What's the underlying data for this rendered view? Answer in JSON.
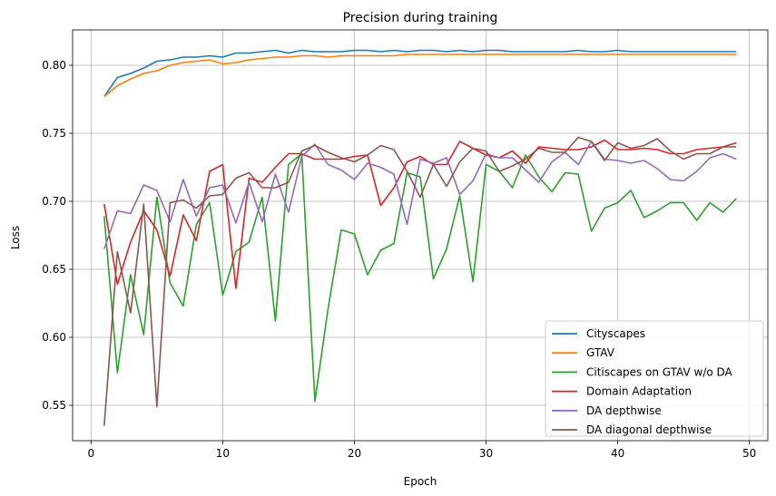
{
  "chart_data": {
    "type": "line",
    "title": "Precision during training",
    "xlabel": "Epoch",
    "ylabel": "Loss",
    "xlim": [
      -1.4,
      51.4
    ],
    "ylim": [
      0.524,
      0.826
    ],
    "xticks": [
      0,
      10,
      20,
      30,
      40,
      50
    ],
    "yticks": [
      0.55,
      0.6,
      0.65,
      0.7,
      0.75,
      0.8
    ],
    "ytick_labels": [
      "0.55",
      "0.60",
      "0.65",
      "0.70",
      "0.75",
      "0.80"
    ],
    "grid": true,
    "legend_position": "lower-right",
    "x": [
      1,
      2,
      3,
      4,
      5,
      6,
      7,
      8,
      9,
      10,
      11,
      12,
      13,
      14,
      15,
      16,
      17,
      18,
      19,
      20,
      21,
      22,
      23,
      24,
      25,
      26,
      27,
      28,
      29,
      30,
      31,
      32,
      33,
      34,
      35,
      36,
      37,
      38,
      39,
      40,
      41,
      42,
      43,
      44,
      45,
      46,
      47,
      48,
      49
    ],
    "series": [
      {
        "name": "Cityscapes",
        "color": "#1f77b4",
        "values": [
          0.777,
          0.791,
          0.794,
          0.798,
          0.803,
          0.804,
          0.806,
          0.806,
          0.807,
          0.806,
          0.809,
          0.809,
          0.81,
          0.811,
          0.809,
          0.811,
          0.81,
          0.81,
          0.81,
          0.811,
          0.811,
          0.81,
          0.811,
          0.81,
          0.811,
          0.811,
          0.81,
          0.811,
          0.81,
          0.811,
          0.811,
          0.81,
          0.81,
          0.81,
          0.81,
          0.81,
          0.811,
          0.81,
          0.81,
          0.811,
          0.81,
          0.81,
          0.81,
          0.81,
          0.81,
          0.81,
          0.81,
          0.81,
          0.81
        ]
      },
      {
        "name": "GTAV",
        "color": "#ff7f0e",
        "values": [
          0.777,
          0.785,
          0.79,
          0.794,
          0.796,
          0.8,
          0.802,
          0.803,
          0.804,
          0.801,
          0.802,
          0.804,
          0.805,
          0.806,
          0.806,
          0.807,
          0.807,
          0.806,
          0.807,
          0.807,
          0.807,
          0.807,
          0.807,
          0.808,
          0.808,
          0.808,
          0.808,
          0.808,
          0.808,
          0.808,
          0.808,
          0.808,
          0.808,
          0.808,
          0.808,
          0.808,
          0.808,
          0.808,
          0.808,
          0.808,
          0.808,
          0.808,
          0.808,
          0.808,
          0.808,
          0.808,
          0.808,
          0.808,
          0.808
        ]
      },
      {
        "name": "Citiscapes on GTAV w/o DA",
        "color": "#2ca02c",
        "values": [
          0.689,
          0.574,
          0.646,
          0.602,
          0.703,
          0.64,
          0.623,
          0.683,
          0.699,
          0.631,
          0.663,
          0.67,
          0.703,
          0.612,
          0.727,
          0.735,
          0.553,
          0.621,
          0.679,
          0.676,
          0.646,
          0.664,
          0.669,
          0.721,
          0.718,
          0.643,
          0.665,
          0.704,
          0.641,
          0.727,
          0.722,
          0.71,
          0.734,
          0.718,
          0.707,
          0.721,
          0.72,
          0.678,
          0.695,
          0.699,
          0.708,
          0.688,
          0.693,
          0.699,
          0.699,
          0.686,
          0.699,
          0.692,
          0.702
        ]
      },
      {
        "name": "Domain Adaptation",
        "color": "#d62728",
        "values": [
          0.698,
          0.639,
          0.67,
          0.693,
          0.679,
          0.645,
          0.69,
          0.671,
          0.722,
          0.727,
          0.636,
          0.717,
          0.714,
          0.725,
          0.735,
          0.735,
          0.731,
          0.731,
          0.731,
          0.733,
          0.734,
          0.697,
          0.71,
          0.729,
          0.733,
          0.727,
          0.727,
          0.744,
          0.739,
          0.734,
          0.732,
          0.737,
          0.728,
          0.74,
          0.739,
          0.738,
          0.738,
          0.74,
          0.745,
          0.738,
          0.738,
          0.739,
          0.738,
          0.735,
          0.735,
          0.738,
          0.739,
          0.74,
          0.743
        ]
      },
      {
        "name": "DA depthwise",
        "color": "#9467bd",
        "values": [
          0.665,
          0.693,
          0.691,
          0.712,
          0.708,
          0.685,
          0.716,
          0.689,
          0.71,
          0.712,
          0.684,
          0.714,
          0.685,
          0.72,
          0.692,
          0.733,
          0.742,
          0.727,
          0.723,
          0.716,
          0.728,
          0.725,
          0.72,
          0.683,
          0.731,
          0.728,
          0.732,
          0.705,
          0.715,
          0.735,
          0.732,
          0.732,
          0.723,
          0.714,
          0.729,
          0.736,
          0.727,
          0.744,
          0.731,
          0.73,
          0.728,
          0.73,
          0.724,
          0.716,
          0.715,
          0.722,
          0.732,
          0.735,
          0.731
        ]
      },
      {
        "name": "DA diagonal depthwise",
        "color": "#8c564b",
        "values": [
          0.535,
          0.663,
          0.618,
          0.698,
          0.549,
          0.699,
          0.701,
          0.695,
          0.704,
          0.705,
          0.717,
          0.721,
          0.71,
          0.71,
          0.714,
          0.737,
          0.741,
          0.736,
          0.732,
          0.729,
          0.734,
          0.741,
          0.738,
          0.722,
          0.703,
          0.727,
          0.711,
          0.729,
          0.739,
          0.737,
          0.722,
          0.726,
          0.731,
          0.739,
          0.736,
          0.736,
          0.747,
          0.744,
          0.73,
          0.743,
          0.739,
          0.741,
          0.746,
          0.737,
          0.731,
          0.735,
          0.735,
          0.74,
          0.74
        ]
      }
    ]
  }
}
